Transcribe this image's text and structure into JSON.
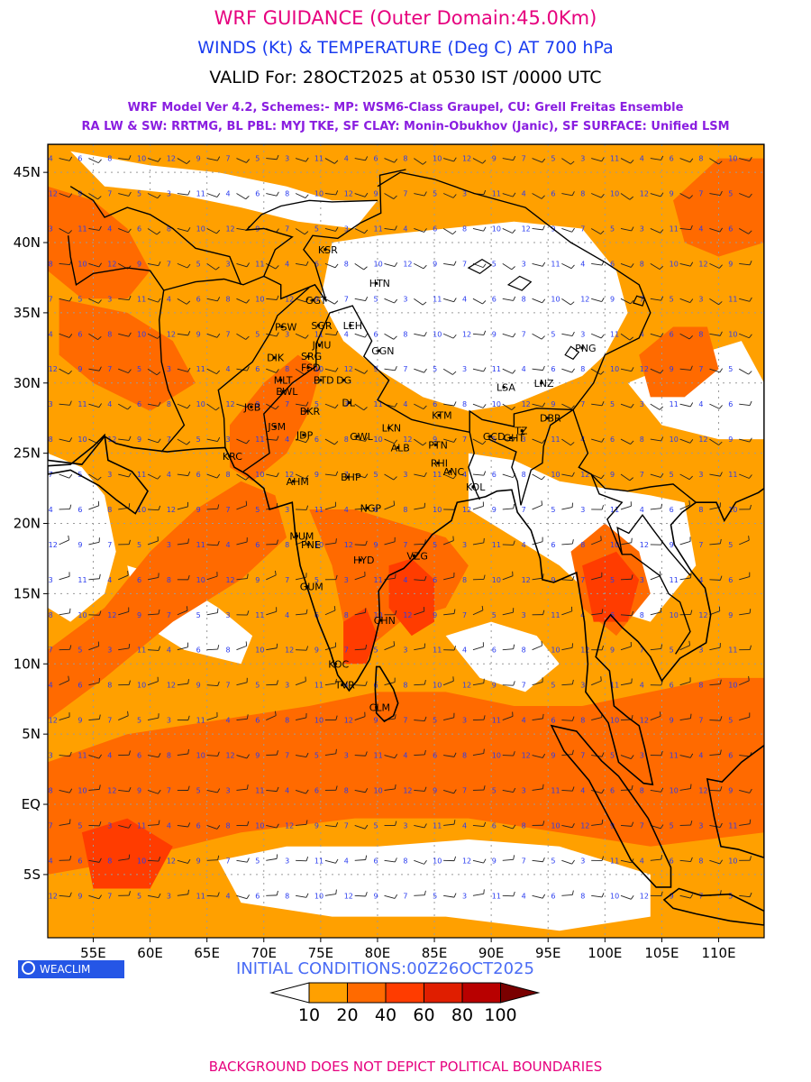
{
  "header": {
    "title": "WRF GUIDANCE (Outer Domain:45.0Km)",
    "subtitle": "WINDS (Kt) & TEMPERATURE (Deg C) AT 700 hPa",
    "valid": "VALID For: 28OCT2025 at 0530 IST /0000 UTC",
    "model_line1": "WRF Model Ver 4.2, Schemes:- MP: WSM6-Class Graupel, CU: Grell Freitas Ensemble",
    "model_line2": "RA LW & SW: RRTMG, BL PBL: MYJ TKE, SF CLAY: Monin-Obukhov (Janic), SF SURFACE: Unified LSM"
  },
  "map": {
    "lon_range": [
      51,
      114
    ],
    "lat_range": [
      -9.5,
      47
    ],
    "lon_ticks": [
      {
        "value": 55,
        "label": "55E"
      },
      {
        "value": 60,
        "label": "60E"
      },
      {
        "value": 65,
        "label": "65E"
      },
      {
        "value": 70,
        "label": "70E"
      },
      {
        "value": 75,
        "label": "75E"
      },
      {
        "value": 80,
        "label": "80E"
      },
      {
        "value": 85,
        "label": "85E"
      },
      {
        "value": 90,
        "label": "90E"
      },
      {
        "value": 95,
        "label": "95E"
      },
      {
        "value": 100,
        "label": "100E"
      },
      {
        "value": 105,
        "label": "105E"
      },
      {
        "value": 110,
        "label": "110E"
      }
    ],
    "lat_ticks": [
      {
        "value": 45,
        "label": "45N"
      },
      {
        "value": 40,
        "label": "40N"
      },
      {
        "value": 35,
        "label": "35N"
      },
      {
        "value": 30,
        "label": "30N"
      },
      {
        "value": 25,
        "label": "25N"
      },
      {
        "value": 20,
        "label": "20N"
      },
      {
        "value": 15,
        "label": "15N"
      },
      {
        "value": 10,
        "label": "10N"
      },
      {
        "value": 5,
        "label": "5N"
      },
      {
        "value": 0,
        "label": "EQ"
      },
      {
        "value": -5,
        "label": "5S"
      }
    ],
    "colors": {
      "lt10": "#ffffff",
      "c10_20": "#ffa000",
      "c20_40": "#ff6a00",
      "c40_60": "#ff3c00",
      "c60_80": "#e01e00",
      "c80_100": "#b80000",
      "gt100": "#7a0000",
      "grid": "#9a9a9a",
      "coast": "#000000",
      "temp_text": "#2a3cf0",
      "barb": "#222222"
    },
    "stations": [
      {
        "code": "KSR",
        "lon": 75.4,
        "lat": 39.5
      },
      {
        "code": "HTN",
        "lon": 79.9,
        "lat": 37.1
      },
      {
        "code": "GGT",
        "lon": 74.3,
        "lat": 35.9
      },
      {
        "code": "PSW",
        "lon": 71.6,
        "lat": 34.0
      },
      {
        "code": "SGR",
        "lon": 74.8,
        "lat": 34.1
      },
      {
        "code": "LEH",
        "lon": 77.6,
        "lat": 34.1
      },
      {
        "code": "JMU",
        "lon": 74.9,
        "lat": 32.7
      },
      {
        "code": "DIK",
        "lon": 70.9,
        "lat": 31.8
      },
      {
        "code": "SRG",
        "lon": 73.9,
        "lat": 31.9
      },
      {
        "code": "GGN",
        "lon": 80.1,
        "lat": 32.3
      },
      {
        "code": "FSD",
        "lon": 73.9,
        "lat": 31.1
      },
      {
        "code": "MLT",
        "lon": 71.5,
        "lat": 30.2
      },
      {
        "code": "BTD",
        "lon": 75.0,
        "lat": 30.2
      },
      {
        "code": "DG",
        "lon": 77.0,
        "lat": 30.2
      },
      {
        "code": "BWL",
        "lon": 71.7,
        "lat": 29.4
      },
      {
        "code": "BKR",
        "lon": 73.8,
        "lat": 28.0
      },
      {
        "code": "DL",
        "lon": 77.5,
        "lat": 28.6
      },
      {
        "code": "JCB",
        "lon": 68.9,
        "lat": 28.3
      },
      {
        "code": "JSM",
        "lon": 71.0,
        "lat": 26.9
      },
      {
        "code": "JDP",
        "lon": 73.5,
        "lat": 26.3
      },
      {
        "code": "LKN",
        "lon": 81.0,
        "lat": 26.8
      },
      {
        "code": "KTM",
        "lon": 85.4,
        "lat": 27.7
      },
      {
        "code": "LSA",
        "lon": 91.1,
        "lat": 29.7
      },
      {
        "code": "LNZ",
        "lon": 94.4,
        "lat": 30.0
      },
      {
        "code": "PNG",
        "lon": 98.0,
        "lat": 32.5
      },
      {
        "code": "GCD",
        "lon": 89.9,
        "lat": 26.2
      },
      {
        "code": "GHT",
        "lon": 91.7,
        "lat": 26.1
      },
      {
        "code": "TZ",
        "lon": 92.7,
        "lat": 26.6
      },
      {
        "code": "DBR",
        "lon": 94.9,
        "lat": 27.5
      },
      {
        "code": "GWL",
        "lon": 78.2,
        "lat": 26.2
      },
      {
        "code": "ALB",
        "lon": 81.8,
        "lat": 25.4
      },
      {
        "code": "PTN",
        "lon": 85.1,
        "lat": 25.6
      },
      {
        "code": "RHI",
        "lon": 85.3,
        "lat": 24.3
      },
      {
        "code": "KRC",
        "lon": 67.0,
        "lat": 24.8
      },
      {
        "code": "BHP",
        "lon": 77.4,
        "lat": 23.3
      },
      {
        "code": "AHM",
        "lon": 72.6,
        "lat": 23.0
      },
      {
        "code": "ANC",
        "lon": 86.4,
        "lat": 23.7
      },
      {
        "code": "KOL",
        "lon": 88.4,
        "lat": 22.6
      },
      {
        "code": "NGP",
        "lon": 79.1,
        "lat": 21.1
      },
      {
        "code": "MUM",
        "lon": 72.9,
        "lat": 19.1
      },
      {
        "code": "PNE",
        "lon": 73.9,
        "lat": 18.5
      },
      {
        "code": "HYD",
        "lon": 78.5,
        "lat": 17.4
      },
      {
        "code": "VZG",
        "lon": 83.2,
        "lat": 17.7
      },
      {
        "code": "GUM",
        "lon": 73.8,
        "lat": 15.5
      },
      {
        "code": "CHN",
        "lon": 80.3,
        "lat": 13.1
      },
      {
        "code": "KOC",
        "lon": 76.3,
        "lat": 10.0
      },
      {
        "code": "TVR",
        "lon": 76.9,
        "lat": 8.5
      },
      {
        "code": "CLM",
        "lon": 79.9,
        "lat": 6.9
      }
    ]
  },
  "logo": {
    "text": "WEACLIM"
  },
  "initial_conditions": "INITIAL CONDITIONS:00Z26OCT2025",
  "legend": {
    "labels": [
      "10",
      "20",
      "40",
      "60",
      "80",
      "100"
    ]
  },
  "footer": "BACKGROUND DOES NOT DEPICT POLITICAL BOUNDARIES"
}
